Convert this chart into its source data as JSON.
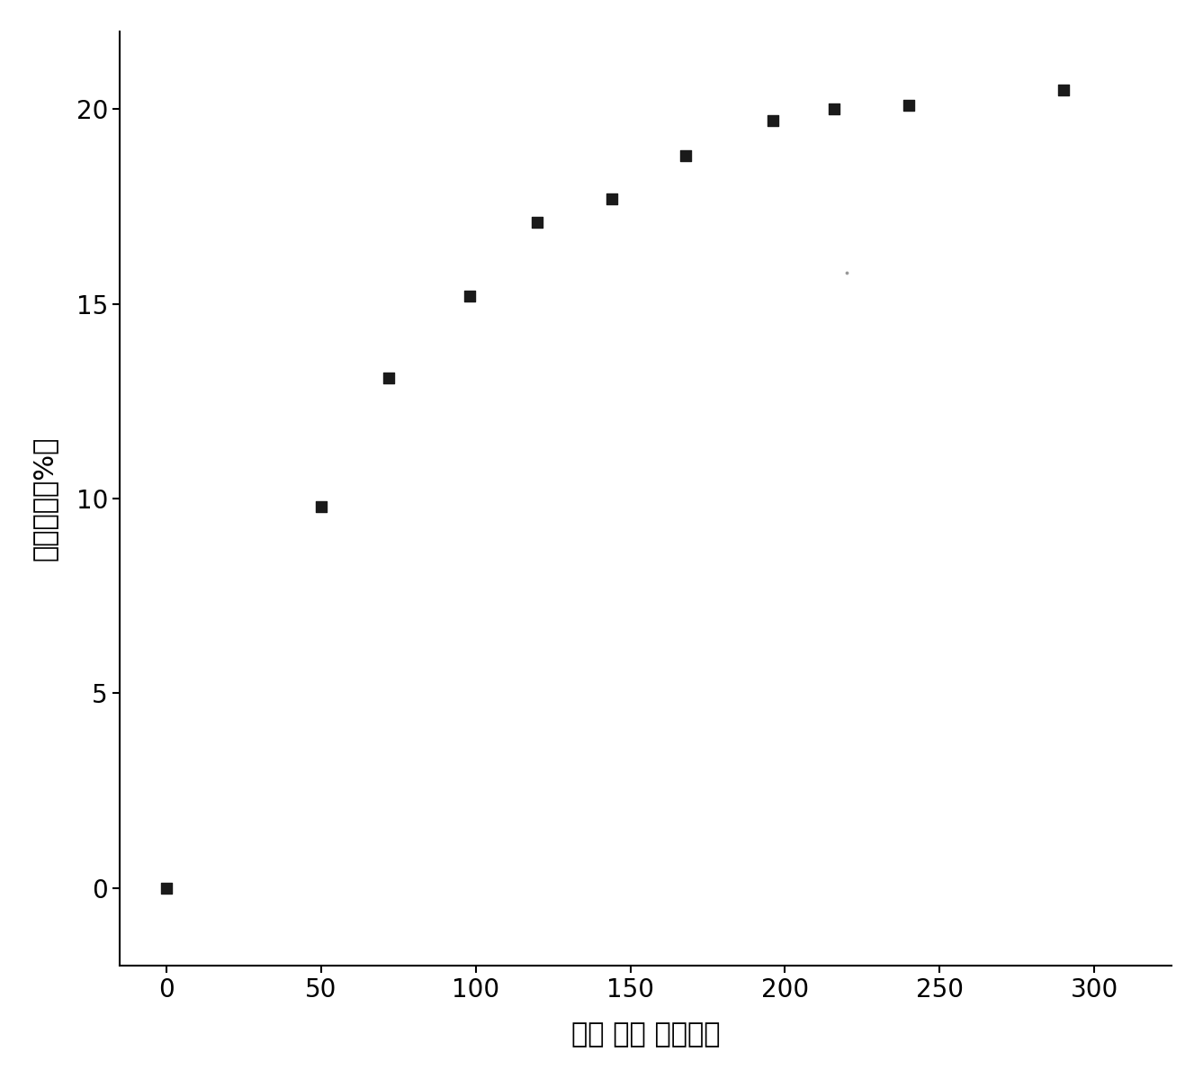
{
  "x": [
    0,
    50,
    72,
    98,
    120,
    144,
    168,
    196,
    216,
    240,
    290
  ],
  "y": [
    0.0,
    9.8,
    13.1,
    15.2,
    17.1,
    17.7,
    18.8,
    19.7,
    20.0,
    20.1,
    20.5
  ],
  "xlabel": "吸收 时间 （小时）",
  "ylabel": "质量分数（%）",
  "xlim": [
    -15,
    325
  ],
  "ylim": [
    -2,
    22
  ],
  "xticks": [
    0,
    50,
    100,
    150,
    200,
    250,
    300
  ],
  "yticks": [
    0,
    5,
    10,
    15,
    20
  ],
  "marker_color": "#1a1a1a",
  "marker_size": 9,
  "background_color": "#ffffff",
  "xlabel_fontsize": 22,
  "ylabel_fontsize": 22,
  "tick_fontsize": 20,
  "extra_dot_x": 220,
  "extra_dot_y": 15.8,
  "spine_color": "#000000"
}
